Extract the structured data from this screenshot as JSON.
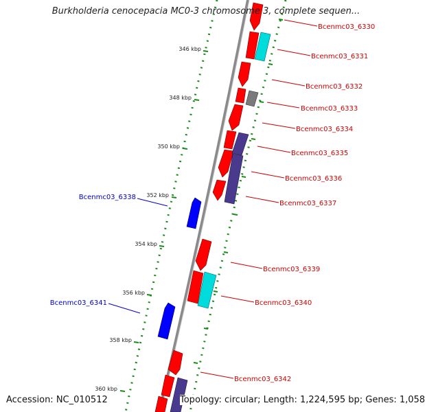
{
  "title": "Burkholderia cenocepacia MC0-3 chromosome 3, complete sequen...",
  "accession": "Accession: NC_010512",
  "topology": "Topology: circular; Length: 1,224,595 bp; Genes: 1,058",
  "colors": {
    "forward_gene": "#ff0000",
    "reverse_gene": "#0000ff",
    "cyan_feature": "#00dcdc",
    "purple_feature": "#4a3a8e",
    "gray_feature": "#7a7a7a",
    "backbone": "#8a8a8a",
    "dots": "#1a8a1a",
    "label_forward": "#cc0000",
    "label_reverse": "#0000cc"
  },
  "scale_labels": [
    "346 kbp",
    "348 kbp",
    "350 kbp",
    "352 kbp",
    "354 kbp",
    "356 kbp",
    "358 kbp",
    "360 kbp"
  ],
  "labels": [
    {
      "text": "Bcenmc03_6330",
      "strand": "forward"
    },
    {
      "text": "Bcenmc03_6331",
      "strand": "forward"
    },
    {
      "text": "Bcenmc03_6332",
      "strand": "forward"
    },
    {
      "text": "Bcenmc03_6333",
      "strand": "forward"
    },
    {
      "text": "Bcenmc03_6334",
      "strand": "forward"
    },
    {
      "text": "Bcenmc03_6335",
      "strand": "forward"
    },
    {
      "text": "Bcenmc03_6336",
      "strand": "forward"
    },
    {
      "text": "Bcenmc03_6337",
      "strand": "forward"
    },
    {
      "text": "Bcenmc03_6338",
      "strand": "reverse"
    },
    {
      "text": "Bcenmc03_6339",
      "strand": "forward"
    },
    {
      "text": "Bcenmc03_6340",
      "strand": "forward"
    },
    {
      "text": "Bcenmc03_6341",
      "strand": "reverse"
    },
    {
      "text": "Bcenmc03_6342",
      "strand": "forward"
    }
  ]
}
